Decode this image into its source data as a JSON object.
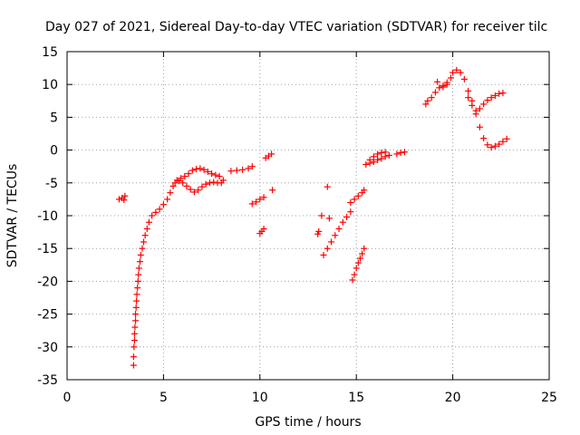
{
  "chart_data": {
    "type": "scatter",
    "title": "Day 027 of 2021, Sidereal Day-to-day VTEC variation (SDTVAR) for receiver tilc",
    "xlabel": "GPS time / hours",
    "ylabel": "SDTVAR / TECUs",
    "xlim": [
      0,
      25
    ],
    "ylim": [
      -35,
      15
    ],
    "xticks": [
      0,
      5,
      10,
      15,
      20,
      25
    ],
    "yticks": [
      -35,
      -30,
      -25,
      -20,
      -15,
      -10,
      -5,
      0,
      5,
      10,
      15
    ],
    "grid": true,
    "marker": "+",
    "series": [
      {
        "name": "SDTVAR",
        "color": "#ff0000",
        "points": [
          [
            2.7,
            -7.5
          ],
          [
            2.85,
            -7.3
          ],
          [
            3.0,
            -7.0
          ],
          [
            2.95,
            -7.6
          ],
          [
            3.45,
            -32.8
          ],
          [
            3.45,
            -31.5
          ],
          [
            3.47,
            -30.0
          ],
          [
            3.5,
            -29.0
          ],
          [
            3.5,
            -28.0
          ],
          [
            3.52,
            -27.0
          ],
          [
            3.55,
            -26.0
          ],
          [
            3.55,
            -25.0
          ],
          [
            3.58,
            -24.0
          ],
          [
            3.6,
            -23.0
          ],
          [
            3.62,
            -22.0
          ],
          [
            3.65,
            -21.0
          ],
          [
            3.68,
            -20.0
          ],
          [
            3.7,
            -19.0
          ],
          [
            3.73,
            -18.0
          ],
          [
            3.78,
            -17.0
          ],
          [
            3.82,
            -16.0
          ],
          [
            3.9,
            -15.0
          ],
          [
            3.97,
            -14.0
          ],
          [
            4.05,
            -13.0
          ],
          [
            4.15,
            -12.0
          ],
          [
            4.25,
            -11.0
          ],
          [
            4.4,
            -10.0
          ],
          [
            4.6,
            -9.5
          ],
          [
            4.8,
            -9.0
          ],
          [
            5.0,
            -8.3
          ],
          [
            5.2,
            -7.5
          ],
          [
            5.35,
            -6.5
          ],
          [
            5.5,
            -5.5
          ],
          [
            5.7,
            -4.6
          ],
          [
            5.9,
            -4.3
          ],
          [
            6.1,
            -4.0
          ],
          [
            6.3,
            -3.6
          ],
          [
            6.5,
            -3.1
          ],
          [
            6.7,
            -2.9
          ],
          [
            6.9,
            -2.8
          ],
          [
            7.1,
            -3.0
          ],
          [
            7.3,
            -3.3
          ],
          [
            7.5,
            -3.6
          ],
          [
            7.7,
            -3.8
          ],
          [
            7.9,
            -4.0
          ],
          [
            5.6,
            -5.0
          ],
          [
            5.8,
            -4.7
          ],
          [
            6.0,
            -5.0
          ],
          [
            6.2,
            -5.5
          ],
          [
            6.4,
            -6.0
          ],
          [
            6.6,
            -6.4
          ],
          [
            6.8,
            -6.1
          ],
          [
            7.0,
            -5.6
          ],
          [
            7.2,
            -5.2
          ],
          [
            7.4,
            -5.0
          ],
          [
            7.6,
            -4.9
          ],
          [
            7.8,
            -5.0
          ],
          [
            8.0,
            -5.0
          ],
          [
            8.1,
            -4.6
          ],
          [
            8.5,
            -3.2
          ],
          [
            8.8,
            -3.1
          ],
          [
            9.1,
            -3.0
          ],
          [
            9.4,
            -2.8
          ],
          [
            9.6,
            -2.5
          ],
          [
            9.6,
            -8.2
          ],
          [
            9.8,
            -7.9
          ],
          [
            10.0,
            -7.5
          ],
          [
            10.2,
            -7.2
          ],
          [
            10.0,
            -12.7
          ],
          [
            10.1,
            -12.4
          ],
          [
            10.2,
            -12.0
          ],
          [
            10.3,
            -1.2
          ],
          [
            10.45,
            -0.9
          ],
          [
            10.6,
            -0.6
          ],
          [
            10.65,
            -6.1
          ],
          [
            13.0,
            -12.8
          ],
          [
            13.05,
            -12.4
          ],
          [
            13.2,
            -10.0
          ],
          [
            13.5,
            -5.6
          ],
          [
            13.6,
            -10.4
          ],
          [
            13.3,
            -16.0
          ],
          [
            13.5,
            -15.0
          ],
          [
            13.7,
            -14.0
          ],
          [
            13.9,
            -13.0
          ],
          [
            14.1,
            -12.0
          ],
          [
            14.3,
            -11.0
          ],
          [
            14.5,
            -10.2
          ],
          [
            14.7,
            -9.4
          ],
          [
            14.7,
            -8.0
          ],
          [
            14.9,
            -7.5
          ],
          [
            15.1,
            -7.0
          ],
          [
            15.3,
            -6.5
          ],
          [
            15.4,
            -6.1
          ],
          [
            14.8,
            -19.8
          ],
          [
            14.9,
            -19.0
          ],
          [
            15.0,
            -18.0
          ],
          [
            15.1,
            -17.2
          ],
          [
            15.2,
            -16.5
          ],
          [
            15.3,
            -15.8
          ],
          [
            15.4,
            -15.0
          ],
          [
            15.5,
            -2.2
          ],
          [
            15.7,
            -2.0
          ],
          [
            15.9,
            -1.8
          ],
          [
            16.1,
            -1.5
          ],
          [
            16.3,
            -1.3
          ],
          [
            16.5,
            -1.0
          ],
          [
            16.7,
            -0.8
          ],
          [
            15.7,
            -1.5
          ],
          [
            15.9,
            -1.0
          ],
          [
            16.1,
            -0.6
          ],
          [
            16.3,
            -0.4
          ],
          [
            16.5,
            -0.3
          ],
          [
            17.1,
            -0.6
          ],
          [
            17.3,
            -0.4
          ],
          [
            17.5,
            -0.3
          ],
          [
            18.6,
            7.0
          ],
          [
            18.7,
            7.5
          ],
          [
            18.9,
            8.0
          ],
          [
            19.1,
            8.8
          ],
          [
            19.3,
            9.5
          ],
          [
            19.5,
            9.8
          ],
          [
            19.7,
            10.3
          ],
          [
            19.9,
            11.0
          ],
          [
            20.0,
            11.8
          ],
          [
            20.2,
            12.2
          ],
          [
            20.4,
            11.8
          ],
          [
            20.6,
            10.8
          ],
          [
            20.8,
            9.0
          ],
          [
            21.0,
            7.5
          ],
          [
            21.2,
            5.5
          ],
          [
            21.4,
            3.5
          ],
          [
            21.6,
            1.8
          ],
          [
            21.8,
            0.8
          ],
          [
            22.0,
            0.4
          ],
          [
            22.2,
            0.6
          ],
          [
            22.4,
            0.9
          ],
          [
            22.6,
            1.3
          ],
          [
            22.8,
            1.7
          ],
          [
            19.2,
            10.4
          ],
          [
            19.5,
            9.6
          ],
          [
            19.7,
            10.0
          ],
          [
            20.8,
            8.0
          ],
          [
            21.0,
            6.8
          ],
          [
            21.2,
            6.0
          ],
          [
            21.4,
            6.3
          ],
          [
            21.6,
            7.0
          ],
          [
            21.8,
            7.6
          ],
          [
            22.0,
            8.0
          ],
          [
            22.2,
            8.3
          ],
          [
            22.4,
            8.6
          ],
          [
            22.6,
            8.7
          ]
        ]
      }
    ]
  }
}
